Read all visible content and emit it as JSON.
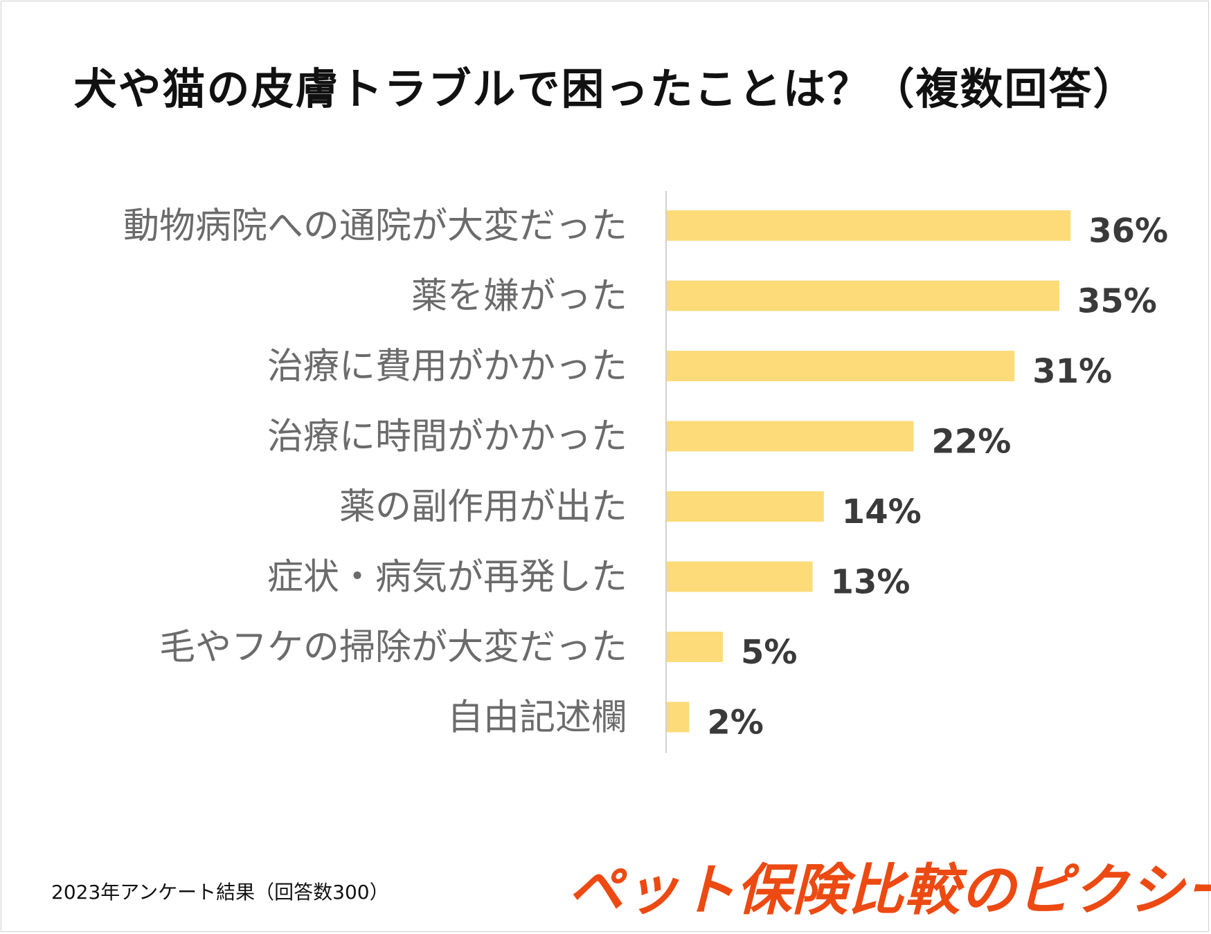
{
  "chart_data": {
    "type": "bar",
    "orientation": "horizontal",
    "title": "犬や猫の皮膚トラブルで困ったことは？（複数回答）",
    "categories": [
      "動物病院への通院が大変だった",
      "薬を嫌がった",
      "治療に費用がかかった",
      "治療に時間がかかった",
      "薬の副作用が出た",
      "症状・病気が再発した",
      "毛やフケの掃除が大変だった",
      "自由記述欄"
    ],
    "values": [
      36,
      35,
      31,
      22,
      14,
      13,
      5,
      2
    ],
    "value_labels": [
      "36%",
      "35%",
      "31%",
      "22%",
      "14%",
      "13%",
      "5%",
      "2%"
    ],
    "unit": "%",
    "xlim": [
      0,
      40
    ],
    "bar_color": "#FDDB78",
    "grid": false,
    "legend": "none"
  },
  "footer": {
    "note": "2023年アンケート結果（回答数300）",
    "brand": "ペット保険比較のピクシー",
    "brand_color": "#EC4A12"
  }
}
